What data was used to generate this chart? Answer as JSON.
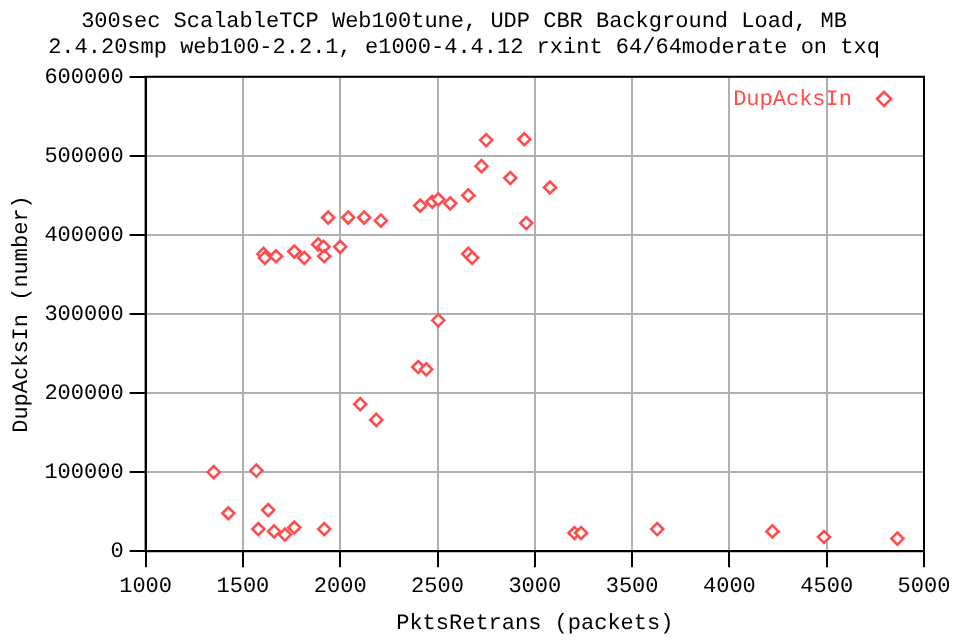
{
  "chart_data": {
    "type": "scatter",
    "title": "300sec ScalableTCP Web100tune, UDP CBR Background Load, MB",
    "subtitle": "2.4.20smp web100-2.2.1, e1000-4.4.12 rxint 64/64moderate on txq",
    "xlabel": "PktsRetrans (packets)",
    "ylabel": "DupAcksIn (number)",
    "xlim": [
      1000,
      5000
    ],
    "xticks": [
      1000,
      1500,
      2000,
      2500,
      3000,
      3500,
      4000,
      4500,
      5000
    ],
    "ylim": [
      0,
      600000
    ],
    "yticks": [
      0,
      100000,
      200000,
      300000,
      400000,
      500000,
      600000
    ],
    "grid": true,
    "legend": "top right",
    "marker": "diamond",
    "series": [
      {
        "name": "DupAcksIn",
        "color": "#ff4d4d",
        "x": [
          1350,
          1425,
          1569,
          1579,
          1606,
          1613,
          1630,
          1660,
          1670,
          1716,
          1764,
          1764,
          1815,
          1887,
          1914,
          1918,
          1918,
          1938,
          2000,
          2041,
          2103,
          2123,
          2185,
          2209,
          2401,
          2411,
          2442,
          2473,
          2504,
          2504,
          2565,
          2658,
          2658,
          2678,
          2726,
          2750,
          2874,
          2946,
          2956,
          3078,
          3204,
          3238,
          3629,
          4221,
          4486,
          4863
        ],
        "values": [
          100000,
          48000,
          102000,
          28000,
          376000,
          371000,
          52000,
          25000,
          373000,
          21000,
          30000,
          379000,
          371000,
          388000,
          385000,
          373000,
          28000,
          422000,
          385000,
          422000,
          186000,
          422000,
          166000,
          418000,
          233000,
          437000,
          230000,
          442000,
          445000,
          292000,
          440000,
          450000,
          376000,
          371000,
          487000,
          520000,
          472000,
          521000,
          415000,
          460000,
          23000,
          23000,
          28000,
          25000,
          18000,
          16000
        ]
      }
    ]
  }
}
